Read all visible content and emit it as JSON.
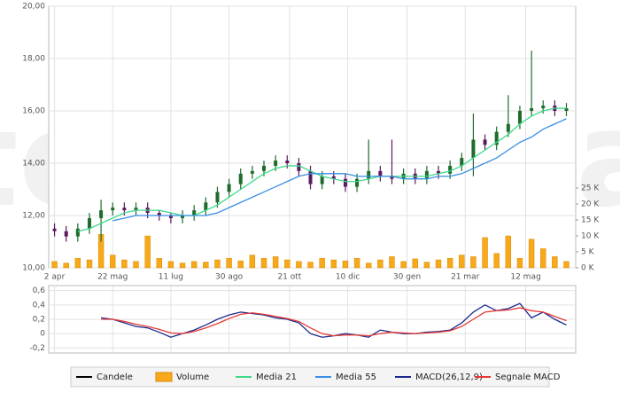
{
  "watermark": "teleborsa",
  "chart_data": [
    {
      "type": "candlestick",
      "x": [
        0,
        10,
        20,
        30,
        40,
        50,
        60,
        70,
        80,
        90,
        100,
        110,
        120,
        130,
        140,
        150,
        160,
        170,
        180,
        190,
        200,
        210,
        220,
        230,
        240,
        250,
        260,
        270,
        280,
        290,
        300,
        310,
        320,
        330,
        340,
        350,
        360,
        370,
        380,
        390,
        400,
        410,
        420,
        430,
        440
      ],
      "xlim": [
        -5,
        448
      ],
      "xticks": [
        {
          "value": 0,
          "label": "2 apr"
        },
        {
          "value": 50,
          "label": "22 mag"
        },
        {
          "value": 100,
          "label": "11 lug"
        },
        {
          "value": 150,
          "label": "30 ago"
        },
        {
          "value": 202,
          "label": "21 ott"
        },
        {
          "value": 252,
          "label": "10 dic"
        },
        {
          "value": 303,
          "label": "30 gen"
        },
        {
          "value": 353,
          "label": "21 mar"
        },
        {
          "value": 405,
          "label": "12 mag"
        }
      ],
      "ylim": [
        10,
        20
      ],
      "yticks": [
        {
          "value": 10,
          "label": "10,00"
        },
        {
          "value": 12,
          "label": "12,00"
        },
        {
          "value": 14,
          "label": "14,00"
        },
        {
          "value": 16,
          "label": "16,00"
        },
        {
          "value": 18,
          "label": "18,00"
        },
        {
          "value": 20,
          "label": "20,00"
        }
      ],
      "y2lim": [
        0,
        82000
      ],
      "y2ticks": [
        {
          "value": 0,
          "label": "0 K"
        },
        {
          "value": 5000,
          "label": "5 K"
        },
        {
          "value": 10000,
          "label": "10 K"
        },
        {
          "value": 15000,
          "label": "15 K"
        },
        {
          "value": 20000,
          "label": "20 K"
        },
        {
          "value": 25000,
          "label": "25 K"
        }
      ],
      "grid": true,
      "up_color": "#1e6b2e",
      "down_color": "#5b1a5e",
      "series": [
        {
          "name": "Candele",
          "type": "candlestick",
          "color": "#000000",
          "open": [
            11.5,
            11.4,
            11.2,
            11.5,
            11.9,
            12.2,
            12.3,
            12.2,
            12.3,
            12.1,
            12.0,
            11.9,
            12.0,
            12.2,
            12.5,
            12.9,
            13.2,
            13.6,
            13.7,
            13.9,
            14.1,
            14.0,
            13.7,
            13.2,
            13.5,
            13.4,
            13.1,
            13.4,
            13.7,
            13.5,
            13.4,
            13.6,
            13.4,
            13.7,
            13.6,
            13.9,
            14.2,
            14.9,
            14.7,
            15.2,
            15.5,
            16.0,
            16.1,
            16.2,
            16.0
          ],
          "high": [
            11.7,
            11.6,
            11.7,
            12.1,
            12.6,
            12.5,
            12.5,
            12.5,
            12.5,
            12.2,
            12.1,
            12.2,
            12.4,
            12.7,
            13.1,
            13.4,
            13.8,
            13.9,
            14.1,
            14.3,
            14.3,
            14.2,
            13.9,
            13.7,
            13.7,
            13.6,
            13.6,
            14.9,
            13.9,
            14.9,
            13.8,
            13.8,
            13.9,
            13.9,
            14.1,
            14.4,
            15.9,
            15.1,
            15.4,
            16.6,
            16.2,
            18.3,
            16.4,
            16.4,
            16.3
          ],
          "low": [
            11.2,
            11.0,
            11.0,
            11.3,
            11.0,
            12.0,
            12.0,
            12.0,
            11.9,
            11.8,
            11.7,
            11.7,
            11.8,
            12.0,
            12.3,
            12.7,
            13.0,
            13.4,
            13.5,
            13.7,
            13.8,
            13.5,
            13.0,
            13.0,
            13.2,
            12.9,
            12.9,
            13.2,
            13.3,
            13.2,
            13.2,
            13.2,
            13.2,
            13.4,
            13.4,
            13.7,
            13.5,
            14.5,
            14.5,
            15.0,
            15.3,
            15.8,
            15.9,
            15.8,
            15.8
          ],
          "close": [
            11.4,
            11.2,
            11.5,
            11.9,
            12.2,
            12.3,
            12.2,
            12.3,
            12.1,
            12.0,
            11.9,
            12.0,
            12.2,
            12.5,
            12.9,
            13.2,
            13.6,
            13.7,
            13.9,
            14.1,
            14.0,
            13.7,
            13.2,
            13.5,
            13.4,
            13.1,
            13.4,
            13.7,
            13.5,
            13.4,
            13.6,
            13.4,
            13.7,
            13.6,
            13.9,
            14.2,
            14.9,
            14.7,
            15.2,
            15.5,
            16.0,
            16.1,
            16.2,
            16.0,
            16.1
          ]
        },
        {
          "name": "Volume",
          "type": "bar",
          "axis": "y2",
          "color": "#f7a81b",
          "values": [
            2000,
            1500,
            3000,
            2500,
            10500,
            4000,
            2500,
            2000,
            10000,
            3000,
            2000,
            1500,
            2000,
            1800,
            2500,
            3000,
            2200,
            4000,
            3000,
            3500,
            2500,
            2000,
            1800,
            3000,
            2500,
            2200,
            3000,
            1500,
            2500,
            3500,
            2000,
            2800,
            1800,
            2500,
            3000,
            4000,
            3500,
            9500,
            4500,
            10000,
            3000,
            9000,
            6000,
            3500,
            2000
          ]
        },
        {
          "name": "Media 21",
          "type": "line",
          "color": "#3fd98a",
          "values": [
            null,
            null,
            11.4,
            11.5,
            11.7,
            11.9,
            12.1,
            12.2,
            12.2,
            12.2,
            12.1,
            12.0,
            12.0,
            12.2,
            12.4,
            12.7,
            13.0,
            13.3,
            13.6,
            13.8,
            13.9,
            13.9,
            13.7,
            13.5,
            13.4,
            13.3,
            13.3,
            13.4,
            13.5,
            13.5,
            13.5,
            13.5,
            13.5,
            13.6,
            13.7,
            13.9,
            14.2,
            14.5,
            14.8,
            15.1,
            15.5,
            15.8,
            16.0,
            16.1,
            16.1
          ]
        },
        {
          "name": "Media 55",
          "type": "line",
          "color": "#3a8ee6",
          "values": [
            null,
            null,
            null,
            null,
            null,
            11.8,
            11.9,
            12.0,
            12.0,
            12.0,
            12.0,
            12.0,
            12.0,
            12.0,
            12.1,
            12.3,
            12.5,
            12.7,
            12.9,
            13.1,
            13.3,
            13.5,
            13.6,
            13.6,
            13.6,
            13.6,
            13.5,
            13.5,
            13.5,
            13.5,
            13.4,
            13.4,
            13.4,
            13.5,
            13.5,
            13.6,
            13.8,
            14.0,
            14.2,
            14.5,
            14.8,
            15.0,
            15.3,
            15.5,
            15.7
          ]
        }
      ]
    },
    {
      "type": "line",
      "x": [
        0,
        10,
        20,
        30,
        40,
        50,
        60,
        70,
        80,
        90,
        100,
        110,
        120,
        130,
        140,
        150,
        160,
        170,
        180,
        190,
        200,
        210,
        220,
        230,
        240,
        250,
        260,
        270,
        280,
        290,
        300,
        310,
        320,
        330,
        340,
        350,
        360,
        370,
        380,
        390,
        400,
        410,
        420,
        430,
        440
      ],
      "xlim": [
        -5,
        448
      ],
      "ylim": [
        -0.27,
        0.67
      ],
      "yticks": [
        {
          "value": -0.2,
          "label": "-0,2"
        },
        0,
        {
          "value": 0.2,
          "label": "0,2"
        },
        {
          "value": 0.4,
          "label": "0,4"
        },
        {
          "value": 0.6,
          "label": "0,6"
        }
      ],
      "grid": true,
      "series": [
        {
          "name": "MACD(26,12,9)",
          "color": "#1a2a8c",
          "values": [
            null,
            null,
            null,
            null,
            0.22,
            0.2,
            0.15,
            0.1,
            0.08,
            0.02,
            -0.05,
            0.0,
            0.05,
            0.12,
            0.2,
            0.26,
            0.3,
            0.28,
            0.26,
            0.22,
            0.2,
            0.15,
            0.0,
            -0.05,
            -0.03,
            0.0,
            -0.02,
            -0.05,
            0.05,
            0.02,
            0.0,
            0.0,
            0.02,
            0.03,
            0.05,
            0.15,
            0.3,
            0.4,
            0.32,
            0.35,
            0.42,
            0.22,
            0.3,
            0.2,
            0.12
          ]
        },
        {
          "name": "Segnale MACD",
          "color": "#e53935",
          "values": [
            null,
            null,
            null,
            null,
            0.2,
            0.2,
            0.17,
            0.13,
            0.1,
            0.06,
            0.01,
            0.0,
            0.03,
            0.08,
            0.14,
            0.21,
            0.27,
            0.29,
            0.27,
            0.24,
            0.21,
            0.17,
            0.08,
            0.0,
            -0.03,
            -0.02,
            -0.02,
            -0.03,
            0.0,
            0.02,
            0.01,
            0.0,
            0.01,
            0.02,
            0.04,
            0.1,
            0.2,
            0.3,
            0.32,
            0.33,
            0.36,
            0.32,
            0.3,
            0.24,
            0.18
          ]
        }
      ]
    }
  ]
}
